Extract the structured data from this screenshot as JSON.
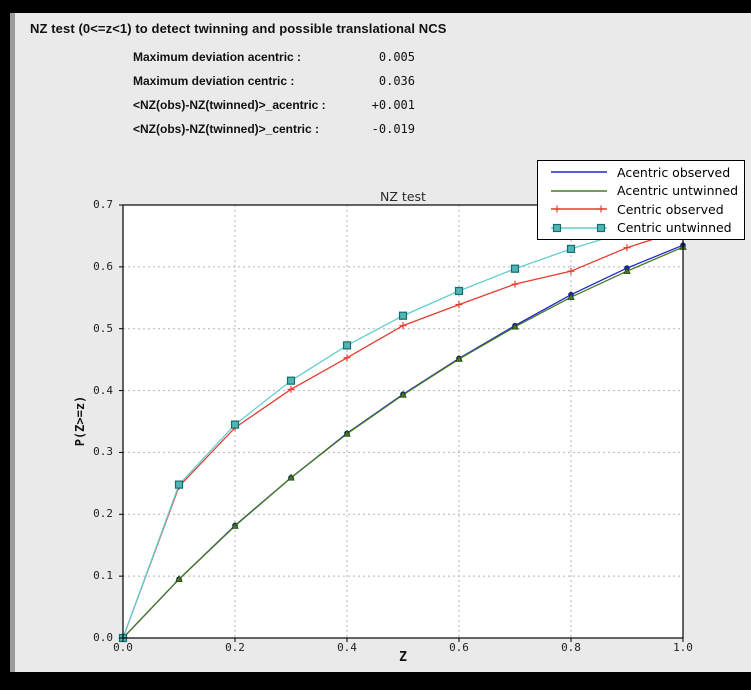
{
  "window": {
    "title": "NZ test (0<=z<1) to detect twinning and possible translational NCS"
  },
  "stats": [
    {
      "label": "Maximum deviation acentric :",
      "value": "0.005"
    },
    {
      "label": "Maximum deviation centric :",
      "value": "0.036"
    },
    {
      "label": "<NZ(obs)-NZ(twinned)>_acentric :",
      "value": "+0.001"
    },
    {
      "label": "<NZ(obs)-NZ(twinned)>_centric :",
      "value": "-0.019"
    }
  ],
  "chart_data": {
    "type": "line",
    "title": "NZ test",
    "xlabel": "Z",
    "ylabel": "P(Z>=z)",
    "xlim": [
      0.0,
      1.0
    ],
    "ylim": [
      0.0,
      0.7
    ],
    "xtick_labels": [
      "0.0",
      "0.2",
      "0.4",
      "0.6",
      "0.8",
      "1.0"
    ],
    "ytick_labels": [
      "0.0",
      "0.1",
      "0.2",
      "0.3",
      "0.4",
      "0.5",
      "0.6",
      "0.7"
    ],
    "grid": "dashed",
    "grid_color": "#b4b4b4",
    "plot_bg": "#ffffff",
    "legend_position": "top-right",
    "x": [
      0.0,
      0.1,
      0.2,
      0.3,
      0.4,
      0.5,
      0.6,
      0.7,
      0.8,
      0.9,
      1.0
    ],
    "series": [
      {
        "name": "Acentric observed",
        "color": "#2323d1",
        "marker": "circle",
        "marker_fill": "#2323d1",
        "marker_edge": "#14147a",
        "legend_marker": false,
        "values": [
          0.0,
          0.095,
          0.182,
          0.259,
          0.331,
          0.394,
          0.452,
          0.505,
          0.555,
          0.598,
          0.635
        ]
      },
      {
        "name": "Acentric untwinned",
        "color": "#457d1f",
        "marker": "triangle",
        "marker_fill": "#457d1f",
        "marker_edge": "#1e3f0e",
        "legend_marker": false,
        "values": [
          0.0,
          0.095,
          0.181,
          0.259,
          0.33,
          0.393,
          0.451,
          0.503,
          0.551,
          0.593,
          0.632
        ]
      },
      {
        "name": "Centric observed",
        "color": "#e63c2e",
        "marker": "plus",
        "marker_fill": "#e63c2e",
        "marker_edge": "#e63c2e",
        "legend_marker": true,
        "values": [
          0.0,
          0.245,
          0.34,
          0.402,
          0.453,
          0.505,
          0.539,
          0.572,
          0.593,
          0.631,
          0.66
        ]
      },
      {
        "name": "Centric untwinned",
        "color": "#63cfd1",
        "marker": "square",
        "marker_fill": "#53b4b6",
        "marker_edge": "#156d6d",
        "legend_marker": true,
        "values": [
          0.0,
          0.248,
          0.345,
          0.416,
          0.473,
          0.521,
          0.561,
          0.597,
          0.629,
          0.657,
          0.683
        ]
      }
    ]
  }
}
